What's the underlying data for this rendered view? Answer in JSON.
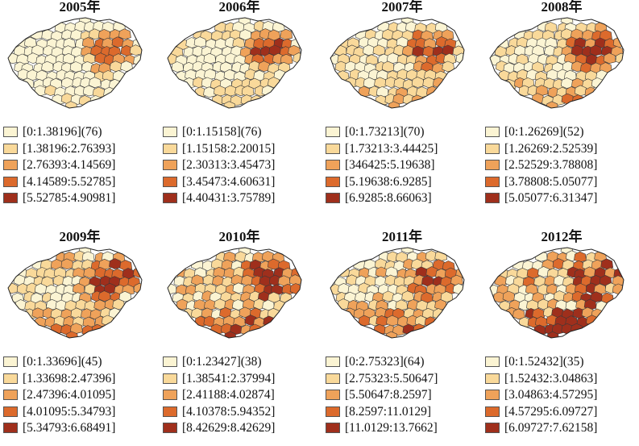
{
  "colors": {
    "class1": "#fbf4d3",
    "class2": "#f9d99a",
    "class3": "#efa25a",
    "class4": "#dc6a2c",
    "class5": "#9f2f1c",
    "border": "#3a3a3a"
  },
  "panels": [
    {
      "title": "2005年",
      "legend": [
        {
          "label": "[0:1.38196](76)",
          "class": 1
        },
        {
          "label": "[1.38196:2.76393]",
          "class": 2
        },
        {
          "label": "[2.76393:4.14569]",
          "class": 3
        },
        {
          "label": "[4.14589:5.52785]",
          "class": 4
        },
        {
          "label": "[5.52785:4.90981]",
          "class": 5
        }
      ]
    },
    {
      "title": "2006年",
      "legend": [
        {
          "label": "[0:1.15158](76)",
          "class": 1
        },
        {
          "label": "[1.15158:2.20015]",
          "class": 2
        },
        {
          "label": "[2.30313:3.45473]",
          "class": 3
        },
        {
          "label": "[3.45473:4.60631]",
          "class": 4
        },
        {
          "label": "[4.40431:3.75789]",
          "class": 5
        }
      ]
    },
    {
      "title": "2007年",
      "legend": [
        {
          "label": "[0:1.73213](70)",
          "class": 1
        },
        {
          "label": "[1.73213:3.44425]",
          "class": 2
        },
        {
          "label": "[346425:5.19638]",
          "class": 3
        },
        {
          "label": "[5.19638:6.9285]",
          "class": 4
        },
        {
          "label": "[6.9285:8.66063]",
          "class": 5
        }
      ]
    },
    {
      "title": "2008年",
      "legend": [
        {
          "label": "[0:1.26269](52)",
          "class": 1
        },
        {
          "label": "[1.26269:2.52539]",
          "class": 2
        },
        {
          "label": "[2.52529:3.78808]",
          "class": 3
        },
        {
          "label": "[3.78808:5.05077]",
          "class": 4
        },
        {
          "label": "[5.05077:6.31347]",
          "class": 5
        }
      ]
    },
    {
      "title": "2009年",
      "legend": [
        {
          "label": "[0:1.33696](45)",
          "class": 1
        },
        {
          "label": "[1.33698:2.47396]",
          "class": 2
        },
        {
          "label": "[2.47396:4.01095]",
          "class": 3
        },
        {
          "label": "[4.01095:5.34793]",
          "class": 4
        },
        {
          "label": "[5.34793:6.68491]",
          "class": 5
        }
      ]
    },
    {
      "title": "2010年",
      "legend": [
        {
          "label": "[0:1.23427](38)",
          "class": 1
        },
        {
          "label": "[1.38541:2.37994]",
          "class": 2
        },
        {
          "label": "[2.41188:4.02874]",
          "class": 3
        },
        {
          "label": "[4.10378:5.94352]",
          "class": 4
        },
        {
          "label": "[8.42629:8.42629]",
          "class": 5
        }
      ]
    },
    {
      "title": "2011年",
      "legend": [
        {
          "label": "[0:2.75323](64)",
          "class": 1
        },
        {
          "label": "[2.75323:5.50647]",
          "class": 2
        },
        {
          "label": "[5.50647:8.2597]",
          "class": 3
        },
        {
          "label": "[8.2597:11.0129]",
          "class": 4
        },
        {
          "label": "[11.0129:13.7662]",
          "class": 5
        }
      ]
    },
    {
      "title": "2012年",
      "legend": [
        {
          "label": "[0:1.52432](35)",
          "class": 1
        },
        {
          "label": "[1.52432:3.04863]",
          "class": 2
        },
        {
          "label": "[3.04863:4.57295]",
          "class": 3
        },
        {
          "label": "[4.57295:6.09727]",
          "class": 4
        },
        {
          "label": "[6.09727:7.62158]",
          "class": 5
        }
      ]
    }
  ]
}
